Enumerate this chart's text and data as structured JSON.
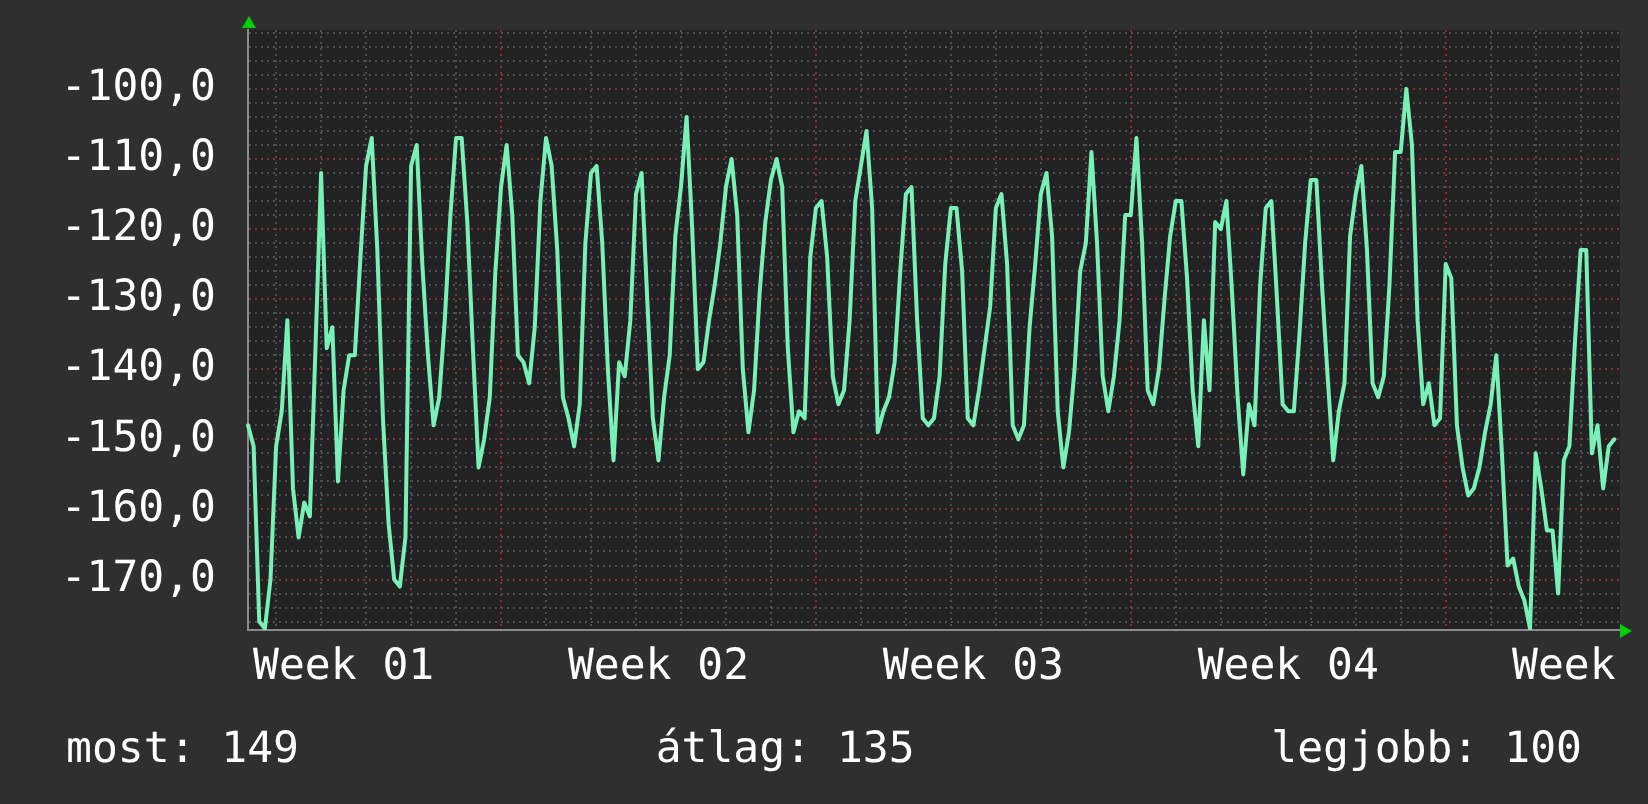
{
  "chart_data": {
    "type": "line",
    "color": "#78f0b8",
    "marker": "none",
    "line_style": "solid",
    "grid": true,
    "categories": [
      null,
      null,
      null,
      null,
      null,
      null,
      null,
      null,
      null,
      null,
      null,
      null,
      null,
      null,
      null,
      null,
      null,
      "Week 01",
      null,
      null,
      null,
      null,
      null,
      null,
      null,
      null,
      null,
      null,
      null,
      null,
      null,
      null,
      null,
      null,
      null,
      null,
      null,
      null,
      null,
      null,
      null,
      null,
      null,
      null,
      null,
      null,
      null,
      null,
      null,
      null,
      null,
      null,
      null,
      null,
      null,
      null,
      null,
      null,
      null,
      null,
      null,
      null,
      null,
      null,
      null,
      null,
      null,
      null,
      null,
      null,
      null,
      null,
      null,
      "Week 02",
      null,
      null,
      null,
      null,
      null,
      null,
      null,
      null,
      null,
      null,
      null,
      null,
      null,
      null,
      null,
      null,
      null,
      null,
      null,
      null,
      null,
      null,
      null,
      null,
      null,
      null,
      null,
      null,
      null,
      null,
      null,
      null,
      null,
      null,
      null,
      null,
      null,
      null,
      null,
      null,
      null,
      null,
      null,
      null,
      null,
      null,
      null,
      null,
      null,
      null,
      null,
      null,
      null,
      null,
      null,
      "Week 03",
      null,
      null,
      null,
      null,
      null,
      null,
      null,
      null,
      null,
      null,
      null,
      null,
      null,
      null,
      null,
      null,
      null,
      null,
      null,
      null,
      null,
      null,
      null,
      null,
      null,
      null,
      null,
      null,
      null,
      null,
      null,
      null,
      null,
      null,
      null,
      null,
      null,
      null,
      null,
      null,
      null,
      null,
      null,
      null,
      null,
      null,
      null,
      null,
      null,
      null,
      null,
      null,
      null,
      null,
      null,
      "Week 04",
      null,
      null,
      null,
      null,
      null,
      null,
      null,
      null,
      null,
      null,
      null,
      null,
      null,
      null,
      null,
      null,
      null,
      null,
      null,
      null,
      null,
      null,
      null,
      null,
      null,
      null,
      null,
      null,
      null,
      null,
      null,
      null,
      null,
      null,
      null,
      null,
      null,
      null,
      null,
      null,
      null,
      null,
      null,
      null,
      null,
      null,
      null,
      null,
      "Week",
      null,
      null,
      null,
      null,
      null,
      null,
      null,
      null,
      null,
      null
    ],
    "values": [
      -148,
      -151,
      -176,
      -177,
      -170,
      -151,
      -146,
      -133,
      -157,
      -164,
      -159,
      -161,
      -137,
      -112,
      -137,
      -134,
      -156,
      -143,
      -138,
      -138,
      -124,
      -111,
      -107,
      -123,
      -147,
      -162,
      -170,
      -171,
      -164,
      -111,
      -108,
      -125,
      -138,
      -148,
      -144,
      -133,
      -118,
      -107,
      -107,
      -119,
      -137,
      -154,
      -150,
      -144,
      -126,
      -114,
      -108,
      -118,
      -138,
      -139,
      -142,
      -134,
      -116,
      -107,
      -111,
      -123,
      -144,
      -147,
      -151,
      -145,
      -122,
      -112,
      -111,
      -122,
      -140,
      -153,
      -139,
      -141,
      -133,
      -115,
      -112,
      -130,
      -147,
      -153,
      -144,
      -138,
      -121,
      -114,
      -104,
      -120,
      -140,
      -139,
      -133,
      -128,
      -122,
      -114,
      -110,
      -118,
      -140,
      -149,
      -143,
      -129,
      -119,
      -113,
      -110,
      -114,
      -137,
      -149,
      -146,
      -147,
      -124,
      -117,
      -116,
      -124,
      -141,
      -145,
      -143,
      -133,
      -116,
      -111,
      -106,
      -117,
      -149,
      -146,
      -144,
      -139,
      -126,
      -115,
      -114,
      -133,
      -147,
      -148,
      -147,
      -141,
      -125,
      -117,
      -117,
      -126,
      -147,
      -148,
      -143,
      -137,
      -131,
      -117,
      -115,
      -125,
      -148,
      -150,
      -148,
      -134,
      -125,
      -115,
      -112,
      -121,
      -146,
      -154,
      -149,
      -140,
      -126,
      -122,
      -109,
      -122,
      -141,
      -146,
      -141,
      -133,
      -118,
      -118,
      -107,
      -122,
      -143,
      -145,
      -140,
      -130,
      -121,
      -116,
      -116,
      -127,
      -143,
      -151,
      -133,
      -143,
      -119,
      -120,
      -116,
      -129,
      -144,
      -155,
      -145,
      -148,
      -128,
      -117,
      -116,
      -130,
      -145,
      -146,
      -146,
      -135,
      -122,
      -113,
      -113,
      -128,
      -141,
      -153,
      -146,
      -142,
      -121,
      -115,
      -111,
      -123,
      -142,
      -144,
      -141,
      -128,
      -109,
      -109,
      -100,
      -108,
      -133,
      -145,
      -142,
      -148,
      -147,
      -125,
      -127,
      -148,
      -154,
      -158,
      -157,
      -154,
      -149,
      -145,
      -138,
      -152,
      -168,
      -167,
      -171,
      -173,
      -177,
      -152,
      -157,
      -163,
      -163,
      -172,
      -153,
      -151,
      -136,
      -123,
      -123,
      -152,
      -148,
      -157,
      -151,
      -150,
      null
    ],
    "ylim": [
      -177.2,
      -91.6
    ],
    "yticks": [
      {
        "value": -92,
        "label": null
      },
      {
        "value": -94,
        "label": null
      },
      {
        "value": -96,
        "label": null
      },
      {
        "value": -98,
        "label": null
      },
      {
        "value": -100,
        "label": "-100,0"
      },
      {
        "value": -102,
        "label": null
      },
      {
        "value": -104,
        "label": null
      },
      {
        "value": -106,
        "label": null
      },
      {
        "value": -108,
        "label": null
      },
      {
        "value": -110,
        "label": "-110,0"
      },
      {
        "value": -112,
        "label": null
      },
      {
        "value": -114,
        "label": null
      },
      {
        "value": -116,
        "label": null
      },
      {
        "value": -118,
        "label": null
      },
      {
        "value": -120,
        "label": "-120,0"
      },
      {
        "value": -122,
        "label": null
      },
      {
        "value": -124,
        "label": null
      },
      {
        "value": -126,
        "label": null
      },
      {
        "value": -128,
        "label": null
      },
      {
        "value": -130,
        "label": "-130,0"
      },
      {
        "value": -132,
        "label": null
      },
      {
        "value": -134,
        "label": null
      },
      {
        "value": -136,
        "label": null
      },
      {
        "value": -138,
        "label": null
      },
      {
        "value": -140,
        "label": "-140,0"
      },
      {
        "value": -142,
        "label": null
      },
      {
        "value": -144,
        "label": null
      },
      {
        "value": -146,
        "label": null
      },
      {
        "value": -148,
        "label": null
      },
      {
        "value": -150,
        "label": "-150,0"
      },
      {
        "value": -152,
        "label": null
      },
      {
        "value": -154,
        "label": null
      },
      {
        "value": -156,
        "label": null
      },
      {
        "value": -158,
        "label": null
      },
      {
        "value": -160,
        "label": "-160,0"
      },
      {
        "value": -162,
        "label": null
      },
      {
        "value": -164,
        "label": null
      },
      {
        "value": -166,
        "label": null
      },
      {
        "value": -168,
        "label": null
      },
      {
        "value": -170,
        "label": "-170,0"
      },
      {
        "value": -172,
        "label": null
      },
      {
        "value": -174,
        "label": null
      },
      {
        "value": -176,
        "label": null
      }
    ],
    "annotations": [
      "most: 149",
      "átlag: 135",
      "legjobb: 100"
    ]
  }
}
